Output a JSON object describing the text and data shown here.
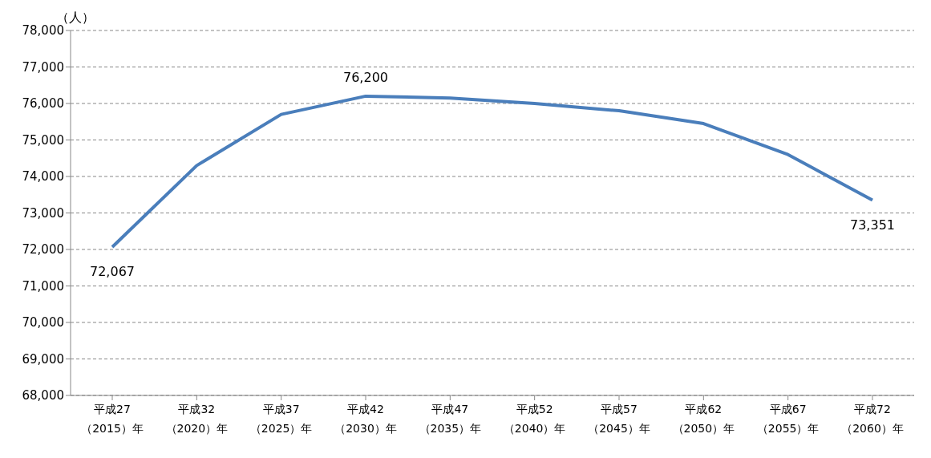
{
  "chart_data": {
    "type": "line",
    "ylabel": "（人）",
    "categories": [
      "平成27\n（2015）年",
      "平成32\n（2020）年",
      "平成37\n（2025）年",
      "平成42\n（2030）年",
      "平成47\n（2035）年",
      "平成52\n（2040）年",
      "平成57\n（2045）年",
      "平成62\n（2050）年",
      "平成67\n（2055）年",
      "平成72\n（2060）年"
    ],
    "series": [
      {
        "color": "#4a7ebb",
        "values": [
          72067,
          74300,
          75700,
          76200,
          76150,
          76000,
          75800,
          75450,
          74600,
          73351
        ],
        "value_labels": [
          "72,067",
          null,
          null,
          "76,200",
          null,
          null,
          null,
          null,
          null,
          "73,351"
        ]
      }
    ],
    "ylim": [
      68000,
      78000
    ],
    "yticks": [
      {
        "value": 68000,
        "label": "68,000"
      },
      {
        "value": 69000,
        "label": "69,000"
      },
      {
        "value": 70000,
        "label": "70,000"
      },
      {
        "value": 71000,
        "label": "71,000"
      },
      {
        "value": 72000,
        "label": "72,000"
      },
      {
        "value": 73000,
        "label": "73,000"
      },
      {
        "value": 74000,
        "label": "74,000"
      },
      {
        "value": 75000,
        "label": "75,000"
      },
      {
        "value": 76000,
        "label": "76,000"
      },
      {
        "value": 77000,
        "label": "77,000"
      },
      {
        "value": 78000,
        "label": "78,000"
      }
    ],
    "grid": "y",
    "marker": "none",
    "line_style": "solid"
  }
}
